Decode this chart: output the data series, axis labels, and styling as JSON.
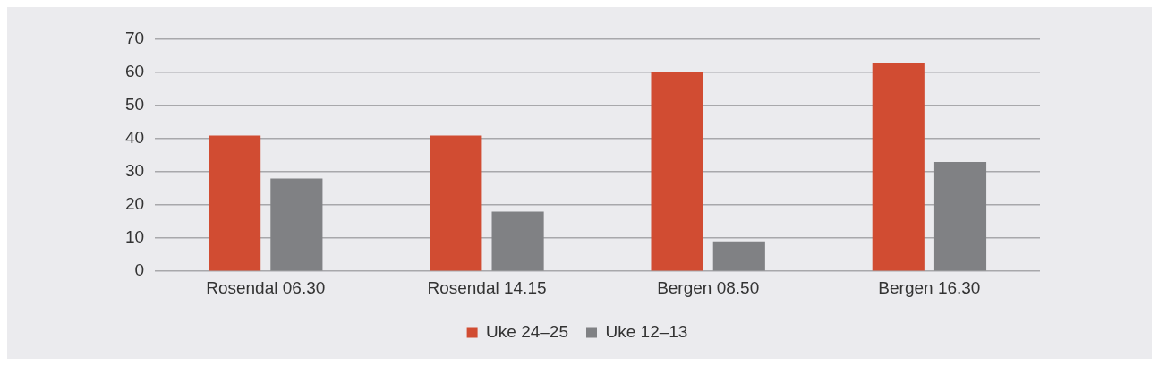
{
  "chart_data": {
    "type": "bar",
    "categories": [
      "Rosendal 06.30",
      "Rosendal 14.15",
      "Bergen 08.50",
      "Bergen 16.30"
    ],
    "series": [
      {
        "name": "Uke 24–25",
        "color": "#d14c32",
        "values": [
          41,
          41,
          60,
          63
        ]
      },
      {
        "name": "Uke 12–13",
        "color": "#808184",
        "values": [
          28,
          18,
          9,
          33
        ]
      }
    ],
    "ylim": [
      0,
      70
    ],
    "yticks": [
      0,
      10,
      20,
      30,
      40,
      50,
      60,
      70
    ],
    "grid": "y",
    "legend": "bottom"
  }
}
